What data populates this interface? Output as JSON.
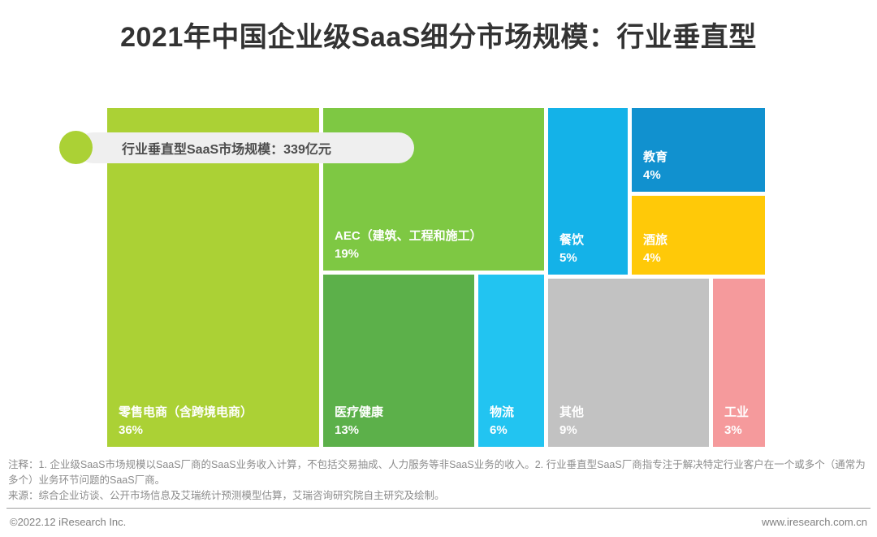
{
  "title": "2021年中国企业级SaaS细分市场规模：行业垂直型",
  "callout": {
    "label": "行业垂直型SaaS市场规模：339亿元",
    "dot_color": "#abd135",
    "pill_bg": "#efefef"
  },
  "chart_data": {
    "type": "treemap",
    "title": "2021年中国企业级SaaS细分市场规模：行业垂直型",
    "total_label": "行业垂直型SaaS市场规模：339亿元",
    "total_value": 339,
    "total_unit": "亿元",
    "value_unit": "%",
    "items": [
      {
        "key": "retail",
        "label": "零售电商（含跨境电商）",
        "value": 36,
        "value_label": "36%",
        "color": "#abd135"
      },
      {
        "key": "aec",
        "label": "AEC（建筑、工程和施工）",
        "value": 19,
        "value_label": "19%",
        "color": "#7ec843"
      },
      {
        "key": "medical",
        "label": "医疗健康",
        "value": 13,
        "value_label": "13%",
        "color": "#5cb04a"
      },
      {
        "key": "logistics",
        "label": "物流",
        "value": 6,
        "value_label": "6%",
        "color": "#22c4f1"
      },
      {
        "key": "catering",
        "label": "餐饮",
        "value": 5,
        "value_label": "5%",
        "color": "#14b2e8"
      },
      {
        "key": "education",
        "label": "教育",
        "value": 4,
        "value_label": "4%",
        "color": "#1191cf"
      },
      {
        "key": "hotel",
        "label": "酒旅",
        "value": 4,
        "value_label": "4%",
        "color": "#ffc908"
      },
      {
        "key": "others",
        "label": "其他",
        "value": 9,
        "value_label": "9%",
        "color": "#c2c2c2"
      },
      {
        "key": "industry",
        "label": "工业",
        "value": 3,
        "value_label": "3%",
        "color": "#f59a9c"
      }
    ]
  },
  "notes": {
    "annotation": "注释：1. 企业级SaaS市场规模以SaaS厂商的SaaS业务收入计算，不包括交易抽成、人力服务等非SaaS业务的收入。2. 行业垂直型SaaS厂商指专注于解决特定行业客户在一个或多个（通常为多个）业务环节问题的SaaS厂商。",
    "source": "来源：综合企业访谈、公开市场信息及艾瑞统计预测模型估算，艾瑞咨询研究院自主研究及绘制。"
  },
  "footer": {
    "copyright": "©2022.12 iResearch Inc.",
    "website": "www.iresearch.com.cn"
  }
}
